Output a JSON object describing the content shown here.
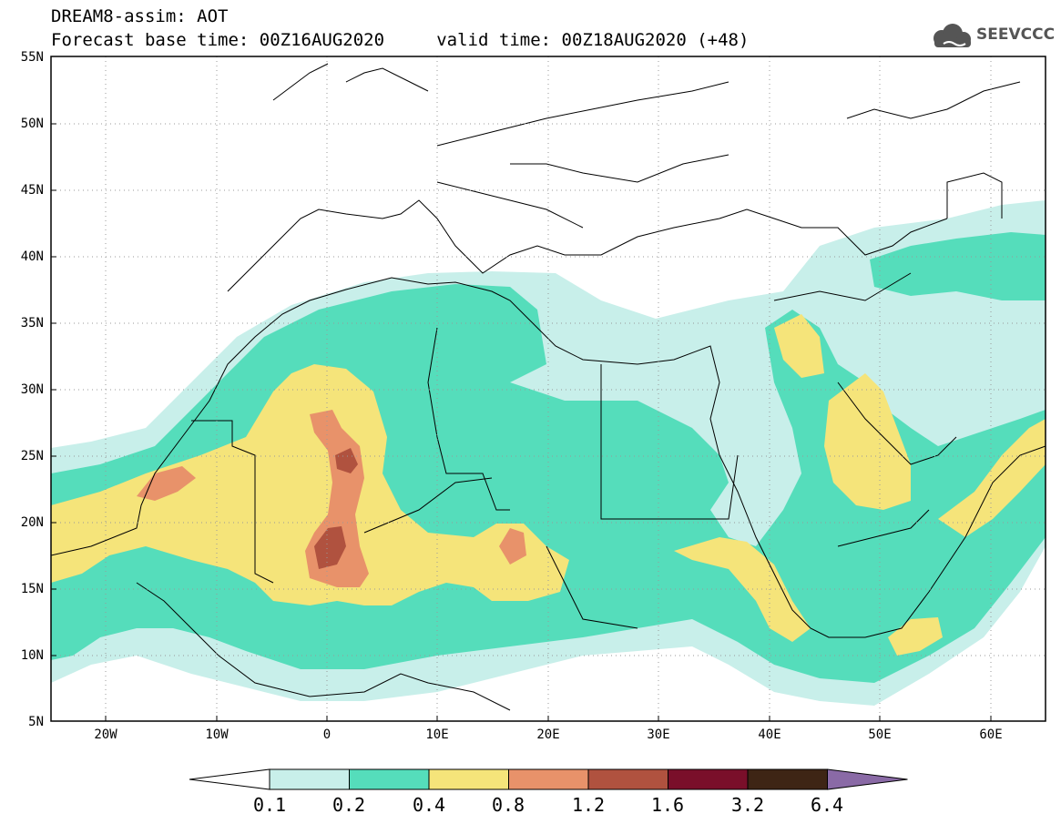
{
  "header": {
    "title_line1": "DREAM8-assim: AOT",
    "title_line2": "Forecast base time: 00Z16AUG2020     valid time: 00Z18AUG2020 (+48)",
    "logo_text": "SEEVCCC"
  },
  "axes": {
    "lat_labels": [
      "55N",
      "50N",
      "45N",
      "40N",
      "35N",
      "30N",
      "25N",
      "20N",
      "15N",
      "10N",
      "5N"
    ],
    "lon_labels": [
      "20W",
      "10W",
      "0",
      "10E",
      "20E",
      "30E",
      "40E",
      "50E",
      "60E"
    ]
  },
  "legend": {
    "labels": [
      "0.1",
      "0.2",
      "0.4",
      "0.8",
      "1.2",
      "1.6",
      "3.2",
      "6.4"
    ],
    "colors": [
      "#ffffff",
      "#c8efea",
      "#55ddbb",
      "#f5e47a",
      "#e8926a",
      "#b0523f",
      "#7a0f2a",
      "#3e2515",
      "#8a6aa6"
    ]
  },
  "map": {
    "fill_colors": {
      "light": "#c8efea",
      "green": "#55ddbb",
      "yellow": "#f5e47a",
      "orange": "#e8926a",
      "brown": "#b0523f"
    }
  }
}
